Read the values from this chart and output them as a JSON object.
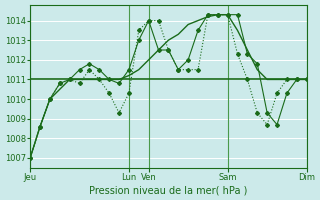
{
  "bg_color": "#cceaea",
  "grid_color": "#ffffff",
  "line_color": "#1a6b1a",
  "xlabel": "Pression niveau de la mer( hPa )",
  "ylim": [
    1006.5,
    1014.8
  ],
  "yticks": [
    1007,
    1008,
    1009,
    1010,
    1011,
    1012,
    1013,
    1014
  ],
  "day_labels": [
    "Jeu",
    "Lun",
    "Ven",
    "Sam",
    "Dim"
  ],
  "day_positions": [
    0,
    60,
    72,
    120,
    168
  ],
  "xlim": [
    0,
    168
  ],
  "hline_y": 1011.0,
  "smooth_x": [
    0,
    6,
    12,
    18,
    24,
    30,
    36,
    42,
    48,
    54,
    60,
    66,
    72,
    78,
    84,
    90,
    96,
    102,
    108,
    114,
    120,
    126,
    132,
    138,
    144,
    150,
    156,
    162,
    168
  ],
  "smooth_y": [
    1007.0,
    1008.6,
    1010.0,
    1010.5,
    1011.0,
    1011.0,
    1011.0,
    1011.0,
    1011.0,
    1011.0,
    1011.2,
    1011.5,
    1012.0,
    1012.5,
    1013.0,
    1013.3,
    1013.8,
    1014.0,
    1014.2,
    1014.3,
    1014.3,
    1013.5,
    1012.5,
    1011.5,
    1011.0,
    1011.0,
    1011.0,
    1011.0,
    1011.0
  ],
  "dotted_x": [
    0,
    6,
    12,
    18,
    24,
    30,
    36,
    42,
    48,
    54,
    60,
    66,
    72,
    78,
    84,
    90,
    96,
    102,
    108,
    114,
    120,
    126,
    132,
    138,
    144,
    150,
    156,
    162,
    168
  ],
  "dotted_y": [
    1007.0,
    1008.6,
    1010.0,
    1010.8,
    1011.0,
    1010.8,
    1011.5,
    1011.0,
    1010.3,
    1009.3,
    1010.3,
    1013.5,
    1014.0,
    1014.0,
    1012.5,
    1011.5,
    1011.5,
    1011.5,
    1014.3,
    1014.3,
    1014.3,
    1012.3,
    1011.0,
    1009.3,
    1008.7,
    1010.3,
    1011.0,
    1011.0,
    1011.0
  ],
  "solid_marker_x": [
    0,
    6,
    12,
    18,
    24,
    30,
    36,
    42,
    48,
    54,
    60,
    66,
    72,
    78,
    84,
    90,
    96,
    102,
    108,
    114,
    120,
    126,
    132,
    138,
    144,
    150,
    156,
    162,
    168
  ],
  "solid_marker_y": [
    1007.0,
    1008.6,
    1010.0,
    1010.8,
    1011.0,
    1011.5,
    1011.8,
    1011.5,
    1011.0,
    1010.8,
    1011.5,
    1013.0,
    1014.0,
    1012.5,
    1012.5,
    1011.5,
    1012.0,
    1013.5,
    1014.3,
    1014.3,
    1014.3,
    1014.3,
    1012.3,
    1011.8,
    1009.3,
    1008.7,
    1010.3,
    1011.0,
    1011.0
  ]
}
